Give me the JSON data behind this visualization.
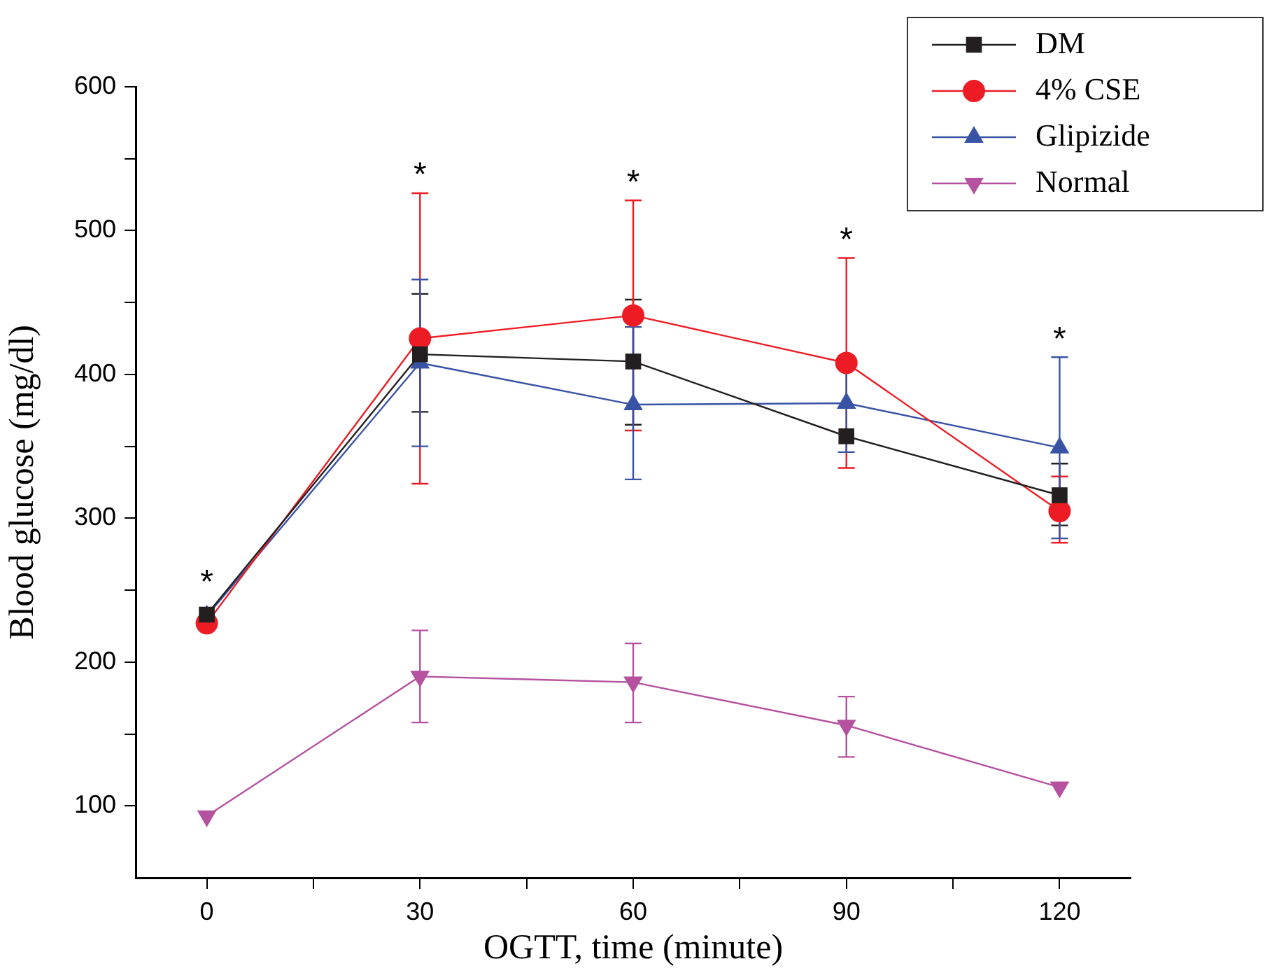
{
  "chart_data": {
    "type": "line",
    "xlabel": "OGTT, time (minute)",
    "ylabel": "Blood glucose (mg/dl)",
    "xlim": [
      -10,
      130
    ],
    "xticks": [
      0,
      {
        "value": 15,
        "label": null
      },
      30,
      {
        "value": 45,
        "label": null
      },
      60,
      {
        "value": 75,
        "label": null
      },
      90,
      {
        "value": 105,
        "label": null
      },
      120
    ],
    "ylim": [
      50,
      600
    ],
    "yticks": [
      100,
      {
        "value": 150,
        "label": null
      },
      200,
      {
        "value": 250,
        "label": null
      },
      300,
      {
        "value": 350,
        "label": null
      },
      400,
      {
        "value": 450,
        "label": null
      },
      500,
      {
        "value": 550,
        "label": null
      },
      600
    ],
    "x": [
      0,
      30,
      60,
      90,
      120
    ],
    "grid": false,
    "legend": "top right",
    "line_style": "solid",
    "series": [
      {
        "name": "DM",
        "color": "#231f20",
        "marker": "square",
        "values": [
          233,
          414,
          409,
          357,
          316
        ],
        "errors": [
          null,
          [
            374,
            456
          ],
          [
            365,
            452
          ],
          null,
          [
            295,
            338
          ]
        ]
      },
      {
        "name": "4% CSE",
        "color": "#ed1c24",
        "marker": "circle",
        "values": [
          227,
          425,
          441,
          408,
          305
        ],
        "errors": [
          null,
          [
            324,
            526
          ],
          [
            361,
            521
          ],
          [
            335,
            481
          ],
          [
            283,
            329
          ]
        ]
      },
      {
        "name": "Glipizide",
        "color": "#3953a4",
        "marker": "triangle",
        "values": [
          232,
          408,
          379,
          380,
          349
        ],
        "errors": [
          null,
          [
            350,
            466
          ],
          [
            327,
            433
          ],
          [
            346,
            413
          ],
          [
            286,
            412
          ]
        ]
      },
      {
        "name": "Normal",
        "color": "#b5519f",
        "marker": "triangle-down",
        "values": [
          93,
          190,
          186,
          156,
          113
        ],
        "errors": [
          null,
          [
            158,
            222
          ],
          [
            158,
            213
          ],
          [
            134,
            176
          ],
          null
        ]
      }
    ],
    "annotations": [
      "*",
      "*",
      "*",
      "*",
      "*"
    ]
  }
}
